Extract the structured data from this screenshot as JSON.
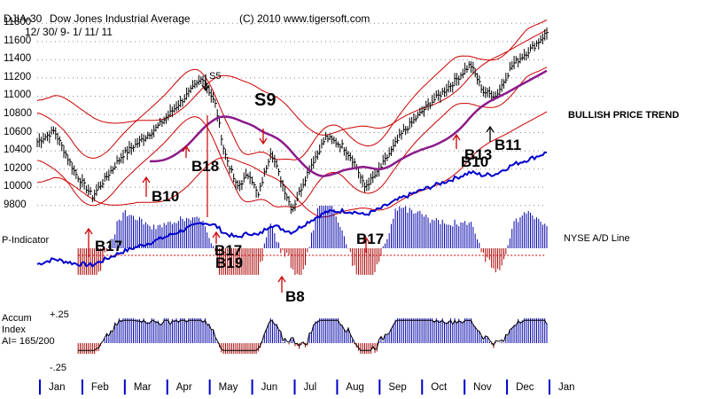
{
  "header": {
    "symbol": "DJIA-30",
    "name": "Dow Jones Industrial Average",
    "date_range": "12/ 30/ 9- 1/ 11/ 11",
    "copyright": "(C) 2010 www.tigersoft.com"
  },
  "labels": {
    "p_indicator": "P-Indicator",
    "nyse_ad": "NYSE A/D Line",
    "trend": "BULLISH PRICE TREND",
    "accum_line1": "Accum",
    "accum_line2": "Index",
    "ai_value": "AI= 165/200",
    "accum_top": "+.25",
    "accum_bottom": "-.25"
  },
  "signals": {
    "s5": "S5",
    "s9": "S9",
    "b18": "B18",
    "b10": "B10",
    "b17_left": "B17",
    "b17_may": "B17",
    "b19": "B19",
    "b8": "B8",
    "b17_aug": "B17",
    "b10_nov": "B10",
    "b13": "B13",
    "b11": "B11"
  },
  "chart_data": {
    "type": "line",
    "title": "Dow Jones Industrial Average",
    "x_months": [
      "Jan",
      "Feb",
      "Mar",
      "Apr",
      "May",
      "Jun",
      "Jul",
      "Aug",
      "Sep",
      "Oct",
      "Nov",
      "Dec",
      "Jan"
    ],
    "y_ticks": [
      9800,
      10000,
      10200,
      10400,
      10600,
      10800,
      11000,
      11200,
      11400,
      11600,
      11800
    ],
    "ylim": [
      9700,
      11900
    ],
    "price_close_key_points": [
      {
        "t": 0,
        "v": 10500
      },
      {
        "t": 0.4,
        "v": 10620
      },
      {
        "t": 0.9,
        "v": 10150
      },
      {
        "t": 1.3,
        "v": 9900
      },
      {
        "t": 2.0,
        "v": 10350
      },
      {
        "t": 2.8,
        "v": 10650
      },
      {
        "t": 3.5,
        "v": 11000
      },
      {
        "t": 3.9,
        "v": 11205
      },
      {
        "t": 4.2,
        "v": 10900
      },
      {
        "t": 4.4,
        "v": 10400
      },
      {
        "t": 4.7,
        "v": 10000
      },
      {
        "t": 5.0,
        "v": 10150
      },
      {
        "t": 5.2,
        "v": 9900
      },
      {
        "t": 5.5,
        "v": 10400
      },
      {
        "t": 5.8,
        "v": 10000
      },
      {
        "t": 6.0,
        "v": 9750
      },
      {
        "t": 6.4,
        "v": 10200
      },
      {
        "t": 6.8,
        "v": 10550
      },
      {
        "t": 7.2,
        "v": 10450
      },
      {
        "t": 7.5,
        "v": 10250
      },
      {
        "t": 7.7,
        "v": 10000
      },
      {
        "t": 8.0,
        "v": 10150
      },
      {
        "t": 8.6,
        "v": 10600
      },
      {
        "t": 9.2,
        "v": 10900
      },
      {
        "t": 9.8,
        "v": 11150
      },
      {
        "t": 10.2,
        "v": 11350
      },
      {
        "t": 10.5,
        "v": 11050
      },
      {
        "t": 10.8,
        "v": 11000
      },
      {
        "t": 11.2,
        "v": 11350
      },
      {
        "t": 11.7,
        "v": 11550
      },
      {
        "t": 12.0,
        "v": 11700
      }
    ],
    "series": [
      {
        "name": "Dow Jones Industrial Average",
        "color": "#000000",
        "style": "daily high-low bars"
      },
      {
        "name": "Moving Average",
        "color": "#8b1a8b"
      },
      {
        "name": "Upper/Lower Bands",
        "color": "#cc0000"
      },
      {
        "name": "NYSE A/D Line",
        "color": "#0000cc"
      },
      {
        "name": "P-Indicator",
        "color": "#0000aa",
        "style": "histogram"
      },
      {
        "name": "Accum Index",
        "color": "#0000aa",
        "style": "histogram"
      }
    ],
    "grid": true,
    "legend": "right"
  }
}
